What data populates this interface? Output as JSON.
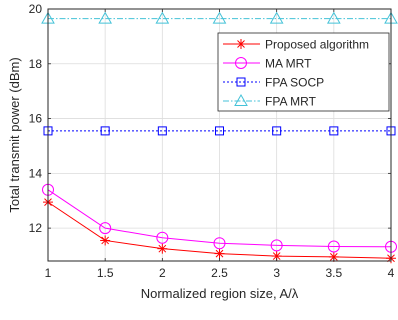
{
  "chart_data": {
    "type": "line",
    "title": "",
    "xlabel": "Normalized region size, A/λ",
    "ylabel": "Total transmit power (dBm)",
    "x": [
      1,
      1.5,
      2,
      2.5,
      3,
      3.5,
      4
    ],
    "xlim": [
      1,
      4
    ],
    "ylim": [
      10.8,
      20
    ],
    "xticks": [
      "1",
      "1.5",
      "2",
      "2.5",
      "3",
      "3.5",
      "4"
    ],
    "yticks": [
      "12",
      "14",
      "16",
      "18",
      "20"
    ],
    "grid": true,
    "legend_position": "top-right",
    "series": [
      {
        "name": "Proposed algorithm",
        "color": "#ff0000",
        "marker": "asterisk",
        "line": "solid",
        "values": [
          12.95,
          11.55,
          11.25,
          11.07,
          10.98,
          10.95,
          10.9
        ]
      },
      {
        "name": "MA MRT",
        "color": "#ff00ff",
        "marker": "circle",
        "line": "solid",
        "values": [
          13.4,
          12.0,
          11.65,
          11.45,
          11.37,
          11.33,
          11.32
        ]
      },
      {
        "name": "FPA SOCP",
        "color": "#0000ff",
        "marker": "square",
        "line": "dotted",
        "values": [
          15.55,
          15.55,
          15.55,
          15.55,
          15.55,
          15.55,
          15.55
        ]
      },
      {
        "name": "FPA MRT",
        "color": "#44c2d8",
        "marker": "triangle",
        "line": "dashdot",
        "values": [
          19.65,
          19.65,
          19.65,
          19.65,
          19.65,
          19.65,
          19.65
        ]
      }
    ]
  }
}
